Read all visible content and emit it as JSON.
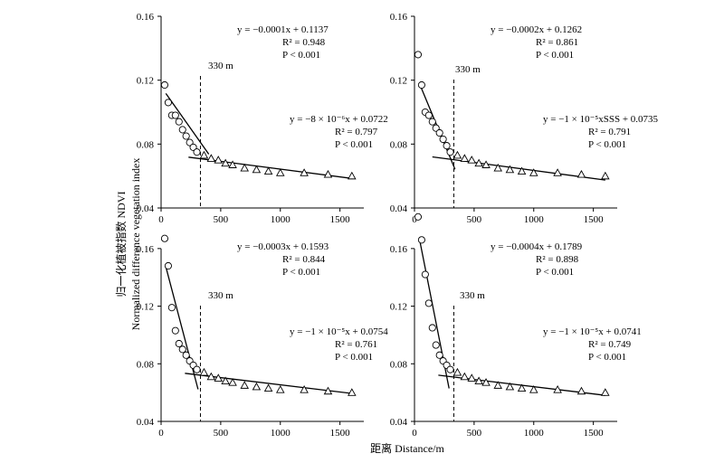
{
  "figure": {
    "y_label_cn": "归一化植被指数 NDVI",
    "y_label_en": "Normalized difference vegetation index",
    "x_label": "距离 Distance/m"
  },
  "chart_data": [
    {
      "type": "scatter",
      "panel": "top-left",
      "xlim": [
        0,
        1700
      ],
      "ylim": [
        0.04,
        0.16
      ],
      "xticks": [
        0,
        500,
        1000,
        1500
      ],
      "yticks": [
        0.04,
        0.08,
        0.12,
        0.16
      ],
      "xtick_labels": [
        "0",
        "500",
        "1000",
        "1500"
      ],
      "ytick_labels": [
        "0.04",
        "0.08",
        "0.12",
        "0.16"
      ],
      "threshold": {
        "x": 330,
        "label": "330 m"
      },
      "near_points": {
        "marker": "circle",
        "x": [
          30,
          60,
          90,
          120,
          150,
          180,
          210,
          240,
          270,
          300
        ],
        "y": [
          0.117,
          0.106,
          0.098,
          0.098,
          0.094,
          0.089,
          0.085,
          0.081,
          0.078,
          0.075
        ]
      },
      "far_points": {
        "marker": "triangle",
        "x": [
          360,
          420,
          480,
          540,
          600,
          700,
          800,
          900,
          1000,
          1200,
          1400,
          1600
        ],
        "y": [
          0.073,
          0.071,
          0.07,
          0.068,
          0.067,
          0.065,
          0.064,
          0.063,
          0.062,
          0.062,
          0.061,
          0.06
        ]
      },
      "fit_near": {
        "x": [
          40,
          400
        ],
        "y": [
          0.1117,
          0.0737
        ]
      },
      "fit_far": {
        "x": [
          230,
          1600
        ],
        "y": [
          0.0718,
          0.0585
        ]
      },
      "eq1": {
        "line1": "y = −0.0001x + 0.1137",
        "r2": "R² = 0.948",
        "p": "P < 0.001"
      },
      "eq2": {
        "line1": "y = −8 × 10⁻⁶x + 0.0722",
        "r2": "R² = 0.797",
        "p": "P < 0.001"
      }
    },
    {
      "type": "scatter",
      "panel": "top-right",
      "xlim": [
        0,
        1700
      ],
      "ylim": [
        0.04,
        0.16
      ],
      "xticks": [
        0,
        500,
        1000,
        1500
      ],
      "yticks": [
        0.04,
        0.08,
        0.12,
        0.16
      ],
      "xtick_labels": [
        "0",
        "500",
        "1000",
        "1500"
      ],
      "ytick_labels": [
        "0.04",
        "0.08",
        "0.12",
        "0.16"
      ],
      "threshold": {
        "x": 330,
        "label": "330 m"
      },
      "near_points": {
        "marker": "circle",
        "x": [
          30,
          60,
          90,
          120,
          150,
          180,
          210,
          240,
          270,
          300
        ],
        "y": [
          0.136,
          0.117,
          0.1,
          0.098,
          0.094,
          0.09,
          0.087,
          0.083,
          0.079,
          0.075
        ]
      },
      "far_points": {
        "marker": "triangle",
        "x": [
          360,
          420,
          480,
          540,
          600,
          700,
          800,
          900,
          1000,
          1200,
          1400,
          1600
        ],
        "y": [
          0.073,
          0.071,
          0.07,
          0.068,
          0.067,
          0.065,
          0.064,
          0.063,
          0.062,
          0.062,
          0.061,
          0.06
        ]
      },
      "fit_near": {
        "x": [
          40,
          340
        ],
        "y": [
          0.1182,
          0.0642
        ]
      },
      "fit_far": {
        "x": [
          150,
          1600
        ],
        "y": [
          0.072,
          0.0575
        ]
      },
      "eq1": {
        "line1": "y = −0.0002x + 0.1262",
        "r2": "R² = 0.861",
        "p": "P < 0.001"
      },
      "eq2": {
        "line1": "y = −1 × 10⁻⁵xSSS + 0.0735",
        "r2": "R² = 0.791",
        "p": "P < 0.001"
      }
    },
    {
      "type": "scatter",
      "panel": "bottom-left",
      "xlim": [
        0,
        1700
      ],
      "ylim": [
        0.04,
        0.18
      ],
      "xticks": [
        0,
        500,
        1000,
        1500
      ],
      "yticks": [
        0.04,
        0.08,
        0.12,
        0.16
      ],
      "xtick_labels": [
        "0",
        "500",
        "1000",
        "1500"
      ],
      "ytick_labels": [
        "0.04",
        "0.08",
        "0.12",
        "0.16"
      ],
      "threshold": {
        "x": 330,
        "label": "330 m"
      },
      "near_points": {
        "marker": "circle",
        "x": [
          30,
          60,
          90,
          120,
          150,
          180,
          210,
          240,
          270,
          300
        ],
        "y": [
          0.167,
          0.148,
          0.119,
          0.103,
          0.094,
          0.09,
          0.086,
          0.082,
          0.079,
          0.076
        ]
      },
      "far_points": {
        "marker": "triangle",
        "x": [
          360,
          420,
          480,
          540,
          600,
          700,
          800,
          900,
          1000,
          1200,
          1400,
          1600
        ],
        "y": [
          0.074,
          0.071,
          0.07,
          0.068,
          0.067,
          0.065,
          0.064,
          0.063,
          0.062,
          0.062,
          0.061,
          0.06
        ]
      },
      "fit_near": {
        "x": [
          40,
          310
        ],
        "y": [
          0.1473,
          0.0623
        ]
      },
      "fit_far": {
        "x": [
          200,
          1600
        ],
        "y": [
          0.0734,
          0.0594
        ]
      },
      "eq1": {
        "line1": "y = −0.0003x + 0.1593",
        "r2": "R² = 0.844",
        "p": "P < 0.001"
      },
      "eq2": {
        "line1": "y = −1 × 10⁻⁵x + 0.0754",
        "r2": "R² = 0.761",
        "p": "P < 0.001"
      }
    },
    {
      "type": "scatter",
      "panel": "bottom-right",
      "xlim": [
        0,
        1700
      ],
      "ylim": [
        0.04,
        0.18
      ],
      "xticks": [
        0,
        500,
        1000,
        1500
      ],
      "yticks": [
        0.04,
        0.08,
        0.12,
        0.16
      ],
      "xtick_labels": [
        "0",
        "500",
        "1000",
        "1500"
      ],
      "ytick_labels": [
        "0.04",
        "0.08",
        "0.12",
        "0.16"
      ],
      "threshold": {
        "x": 330,
        "label": "330 m"
      },
      "near_points": {
        "marker": "circle",
        "x": [
          30,
          60,
          90,
          120,
          150,
          180,
          210,
          240,
          270,
          300
        ],
        "y": [
          0.182,
          0.166,
          0.142,
          0.122,
          0.105,
          0.093,
          0.086,
          0.082,
          0.079,
          0.076
        ]
      },
      "far_points": {
        "marker": "triangle",
        "x": [
          360,
          420,
          480,
          540,
          600,
          700,
          800,
          900,
          1000,
          1200,
          1400,
          1600
        ],
        "y": [
          0.074,
          0.071,
          0.07,
          0.068,
          0.067,
          0.065,
          0.064,
          0.063,
          0.062,
          0.062,
          0.061,
          0.06
        ]
      },
      "fit_near": {
        "x": [
          40,
          290
        ],
        "y": [
          0.1673,
          0.0629
        ]
      },
      "fit_far": {
        "x": [
          200,
          1600
        ],
        "y": [
          0.0721,
          0.0581
        ]
      },
      "eq1": {
        "line1": "y = −0.0004x + 0.1789",
        "r2": "R² = 0.898",
        "p": "P < 0.001"
      },
      "eq2": {
        "line1": "y = −1 × 10⁻⁵x + 0.0741",
        "r2": "R² = 0.749",
        "p": "P < 0.001"
      }
    }
  ]
}
